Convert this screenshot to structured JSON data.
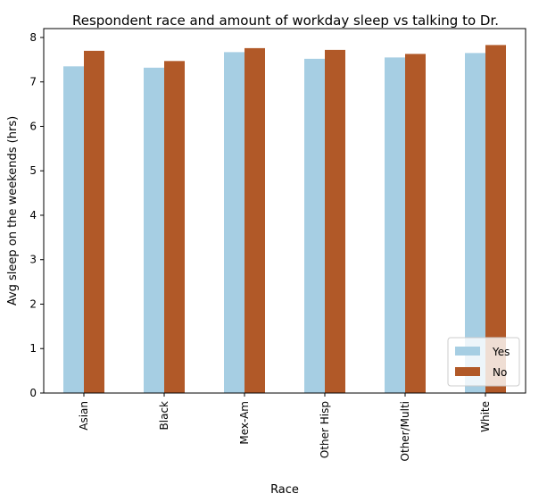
{
  "chart_data": {
    "type": "bar",
    "title": "Respondent race and amount of workday sleep vs talking to Dr.",
    "xlabel": "Race",
    "ylabel": "Avg sleep on the weekends (hrs)",
    "categories": [
      "Asian",
      "Black",
      "Mex-Am",
      "Other Hisp",
      "Other/Multi",
      "White"
    ],
    "series": [
      {
        "name": "Yes",
        "color": "#a6cee3",
        "values": [
          7.35,
          7.32,
          7.67,
          7.52,
          7.55,
          7.65
        ]
      },
      {
        "name": "No",
        "color": "#b15928",
        "values": [
          7.7,
          7.47,
          7.76,
          7.72,
          7.63,
          7.83
        ]
      }
    ],
    "ylim": [
      0,
      8.2
    ],
    "yticks": [
      0,
      1,
      2,
      3,
      4,
      5,
      6,
      7,
      8
    ],
    "legend_position": "lower right",
    "grid": false
  }
}
